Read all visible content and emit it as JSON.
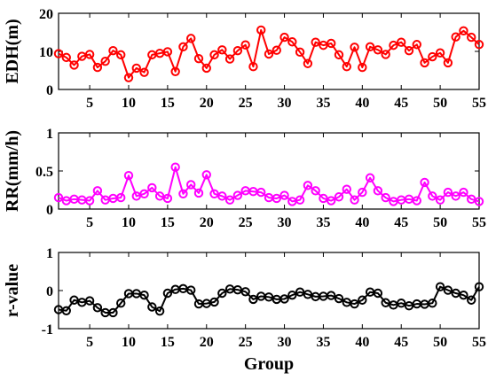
{
  "chart_data": [
    {
      "type": "line",
      "xlabel": "",
      "ylabel": "EDH(m)",
      "xlim": [
        1,
        55
      ],
      "ylim": [
        0,
        20
      ],
      "xticks": [
        5,
        10,
        15,
        20,
        25,
        30,
        35,
        40,
        45,
        50,
        55
      ],
      "yticks": [
        0,
        10,
        20
      ],
      "color": "#ff0000",
      "marker": "circle-open",
      "grid": false,
      "series": [
        {
          "x": [
            1,
            2,
            3,
            4,
            5,
            6,
            7,
            8,
            9,
            10,
            11,
            12,
            13,
            14,
            15,
            16,
            17,
            18,
            19,
            20,
            21,
            22,
            23,
            24,
            25,
            26,
            27,
            28,
            29,
            30,
            31,
            32,
            33,
            34,
            35,
            36,
            37,
            38,
            39,
            40,
            41,
            42,
            43,
            44,
            45,
            46,
            47,
            48,
            49,
            50,
            51,
            52,
            53,
            54,
            55
          ],
          "y": [
            9.4,
            8.4,
            6.4,
            8.7,
            9.2,
            5.8,
            7.4,
            10.2,
            9.1,
            3.1,
            5.6,
            4.5,
            9.1,
            9.5,
            9.9,
            4.7,
            11.2,
            13.4,
            8.1,
            5.6,
            9.1,
            10.4,
            8.0,
            10.2,
            11.7,
            6.0,
            15.6,
            9.3,
            10.3,
            13.7,
            12.5,
            9.8,
            6.8,
            12.4,
            11.6,
            12.1,
            9.1,
            6.0,
            11.1,
            5.8,
            11.2,
            10.4,
            9.2,
            11.6,
            12.4,
            10.2,
            11.8,
            7.0,
            8.6,
            9.6,
            7.0,
            13.8,
            15.4,
            13.7,
            11.8
          ]
        }
      ]
    },
    {
      "type": "line",
      "xlabel": "",
      "ylabel": "RR(mm/h)",
      "xlim": [
        1,
        55
      ],
      "ylim": [
        0,
        1
      ],
      "xticks": [
        5,
        10,
        15,
        20,
        25,
        30,
        35,
        40,
        45,
        50,
        55
      ],
      "yticks": [
        0,
        0.5,
        1
      ],
      "yticklabels": [
        "0",
        "0.5",
        "1"
      ],
      "color": "#ff00ff",
      "marker": "circle-open",
      "grid": false,
      "series": [
        {
          "x": [
            1,
            2,
            3,
            4,
            5,
            6,
            7,
            8,
            9,
            10,
            11,
            12,
            13,
            14,
            15,
            16,
            17,
            18,
            19,
            20,
            21,
            22,
            23,
            24,
            25,
            26,
            27,
            28,
            29,
            30,
            31,
            32,
            33,
            34,
            35,
            36,
            37,
            38,
            39,
            40,
            41,
            42,
            43,
            44,
            45,
            46,
            47,
            48,
            49,
            50,
            51,
            52,
            53,
            54,
            55
          ],
          "y": [
            0.15,
            0.11,
            0.13,
            0.12,
            0.11,
            0.24,
            0.12,
            0.14,
            0.15,
            0.44,
            0.17,
            0.2,
            0.28,
            0.17,
            0.14,
            0.55,
            0.2,
            0.32,
            0.21,
            0.45,
            0.2,
            0.17,
            0.12,
            0.18,
            0.24,
            0.23,
            0.22,
            0.15,
            0.14,
            0.18,
            0.1,
            0.12,
            0.31,
            0.24,
            0.14,
            0.11,
            0.16,
            0.26,
            0.12,
            0.22,
            0.41,
            0.24,
            0.15,
            0.1,
            0.12,
            0.13,
            0.11,
            0.35,
            0.17,
            0.12,
            0.22,
            0.17,
            0.22,
            0.13,
            0.1
          ]
        }
      ]
    },
    {
      "type": "line",
      "xlabel": "Group",
      "ylabel": "r-value",
      "xlim": [
        1,
        55
      ],
      "ylim": [
        -1,
        1
      ],
      "xticks": [
        5,
        10,
        15,
        20,
        25,
        30,
        35,
        40,
        45,
        50,
        55
      ],
      "yticks": [
        -1,
        0,
        1
      ],
      "color": "#000000",
      "marker": "circle-open",
      "grid": false,
      "series": [
        {
          "x": [
            1,
            2,
            3,
            4,
            5,
            6,
            7,
            8,
            9,
            10,
            11,
            12,
            13,
            14,
            15,
            16,
            17,
            18,
            19,
            20,
            21,
            22,
            23,
            24,
            25,
            26,
            27,
            28,
            29,
            30,
            31,
            32,
            33,
            34,
            35,
            36,
            37,
            38,
            39,
            40,
            41,
            42,
            43,
            44,
            45,
            46,
            47,
            48,
            49,
            50,
            51,
            52,
            53,
            54,
            55
          ],
          "y": [
            -0.5,
            -0.53,
            -0.25,
            -0.31,
            -0.27,
            -0.45,
            -0.58,
            -0.58,
            -0.33,
            -0.08,
            -0.08,
            -0.12,
            -0.43,
            -0.54,
            -0.07,
            0.03,
            0.05,
            0.01,
            -0.35,
            -0.34,
            -0.3,
            -0.07,
            0.04,
            0.02,
            -0.03,
            -0.23,
            -0.15,
            -0.17,
            -0.23,
            -0.22,
            -0.12,
            -0.04,
            -0.1,
            -0.16,
            -0.15,
            -0.13,
            -0.21,
            -0.31,
            -0.35,
            -0.25,
            -0.04,
            -0.07,
            -0.32,
            -0.38,
            -0.33,
            -0.4,
            -0.35,
            -0.36,
            -0.33,
            0.1,
            0.01,
            -0.07,
            -0.12,
            -0.25,
            0.1
          ]
        }
      ]
    }
  ]
}
